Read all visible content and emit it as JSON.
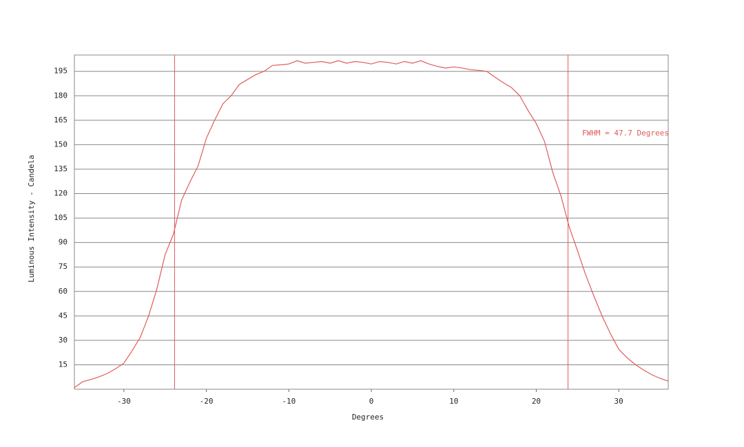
{
  "chart_data": {
    "type": "line",
    "xlabel": "Degrees",
    "ylabel": "Luminous Intensity - Candela",
    "annotation": "FWHM = 47.7 Degrees",
    "vlines": [
      -23.85,
      23.85
    ],
    "xlim": [
      -36,
      36
    ],
    "xticks": [
      -30,
      -20,
      -10,
      0,
      10,
      20,
      30
    ],
    "ylim": [
      0,
      205
    ],
    "yticks": [
      15,
      30,
      45,
      60,
      75,
      90,
      105,
      120,
      135,
      150,
      165,
      180,
      195
    ],
    "grid": true,
    "series": [
      {
        "color": "#e05a5a",
        "x": [
          -36,
          -35,
          -34,
          -33,
          -32,
          -31,
          -30,
          -29,
          -28,
          -27,
          -26,
          -25,
          -24,
          -23,
          -22,
          -21,
          -20,
          -19,
          -18,
          -17,
          -16,
          -15,
          -14,
          -13,
          -12,
          -11,
          -10,
          -9,
          -8,
          -7,
          -6,
          -5,
          -4,
          -3,
          -2,
          -1,
          0,
          1,
          2,
          3,
          4,
          5,
          6,
          7,
          8,
          9,
          10,
          11,
          12,
          13,
          14,
          15,
          16,
          17,
          18,
          19,
          20,
          21,
          22,
          23,
          24,
          25,
          26,
          27,
          28,
          29,
          30,
          31,
          32,
          33,
          34,
          35,
          36
        ],
        "values": [
          1,
          4.6,
          6,
          7.6,
          9.7,
          12.6,
          16,
          23.6,
          32,
          45,
          61.5,
          82.6,
          95,
          116,
          127,
          137,
          154,
          165,
          175,
          180,
          187,
          190,
          193,
          195,
          198.6,
          199,
          199.5,
          201.5,
          200,
          200.5,
          201,
          200,
          201.5,
          200,
          201,
          200.5,
          199.5,
          201,
          200.5,
          199.5,
          201,
          200,
          201.5,
          199.5,
          198,
          197,
          197.7,
          197,
          196,
          195.6,
          195,
          191.4,
          188,
          185,
          180,
          171,
          163,
          152,
          133,
          118.5,
          99.5,
          85,
          70,
          57,
          44.7,
          34,
          24.5,
          19.4,
          15.2,
          11.8,
          8.9,
          6.7,
          5
        ]
      }
    ]
  }
}
